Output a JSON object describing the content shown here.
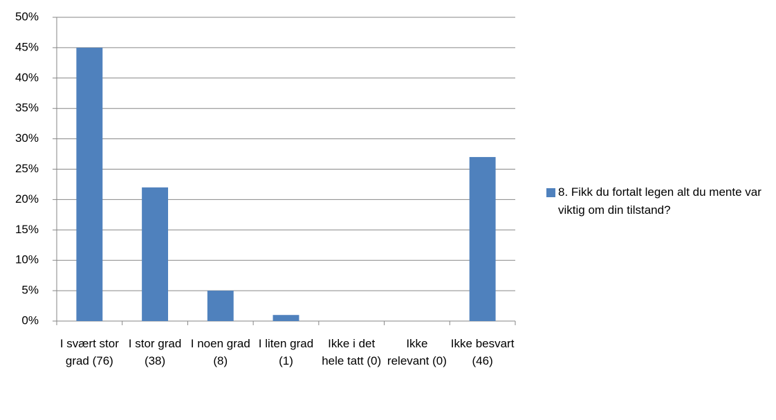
{
  "chart_data": {
    "type": "bar",
    "categories": [
      "I svært stor grad (76)",
      "I stor grad (38)",
      "I noen grad (8)",
      "I liten grad (1)",
      "Ikke i det hele tatt (0)",
      "Ikke relevant (0)",
      "Ikke besvart (46)"
    ],
    "series": [
      {
        "name": "8. Fikk du fortalt legen alt du mente var viktig om din tilstand?",
        "color": "#4f81bd",
        "values": [
          45,
          22,
          5,
          1,
          0,
          0,
          27
        ]
      }
    ],
    "ylim": [
      0,
      50
    ],
    "yticks": [
      {
        "value": 0,
        "label": "0%"
      },
      {
        "value": 5,
        "label": "5%"
      },
      {
        "value": 10,
        "label": "10%"
      },
      {
        "value": 15,
        "label": "15%"
      },
      {
        "value": 20,
        "label": "20%"
      },
      {
        "value": 25,
        "label": "25%"
      },
      {
        "value": 30,
        "label": "30%"
      },
      {
        "value": 35,
        "label": "35%"
      },
      {
        "value": 40,
        "label": "40%"
      },
      {
        "value": 45,
        "label": "45%"
      },
      {
        "value": 50,
        "label": "50%"
      }
    ],
    "grid": true,
    "legend": "right"
  }
}
